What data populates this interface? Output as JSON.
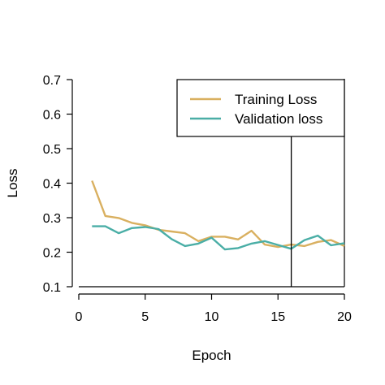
{
  "chart_data": {
    "type": "line",
    "title": "",
    "xlabel": "Epoch",
    "ylabel": "Loss",
    "xlim": [
      0,
      20
    ],
    "ylim": [
      0.1,
      0.7
    ],
    "xticks": [
      "0",
      "5",
      "10",
      "15",
      "20"
    ],
    "yticks": [
      "0.1",
      "0.2",
      "0.3",
      "0.4",
      "0.5",
      "0.6",
      "0.7"
    ],
    "x": [
      1,
      2,
      3,
      4,
      5,
      6,
      7,
      8,
      9,
      10,
      11,
      12,
      13,
      14,
      15,
      16,
      17,
      18,
      19,
      20
    ],
    "series": [
      {
        "name": "Training Loss",
        "color": "#D9B060",
        "values": [
          0.407,
          0.305,
          0.299,
          0.285,
          0.278,
          0.265,
          0.26,
          0.255,
          0.232,
          0.245,
          0.245,
          0.237,
          0.262,
          0.222,
          0.215,
          0.222,
          0.218,
          0.23,
          0.235,
          0.218
        ]
      },
      {
        "name": "Validation loss",
        "color": "#4AAEA6",
        "values": [
          0.275,
          0.275,
          0.255,
          0.27,
          0.273,
          0.267,
          0.238,
          0.218,
          0.225,
          0.242,
          0.208,
          0.212,
          0.225,
          0.232,
          0.221,
          0.21,
          0.235,
          0.248,
          0.22,
          0.226
        ]
      }
    ],
    "vline_x": 16,
    "grid": false,
    "legend_position": "top-right"
  }
}
